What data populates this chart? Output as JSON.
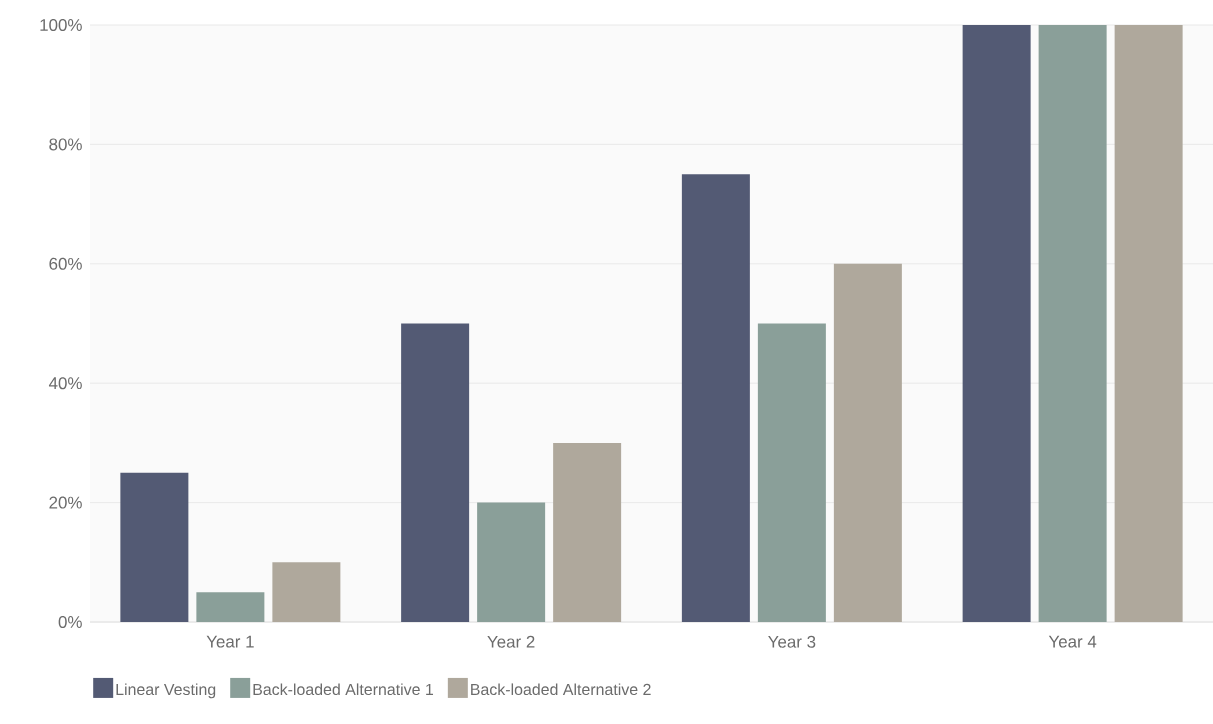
{
  "chart_data": {
    "type": "bar",
    "categories": [
      "Year 1",
      "Year 2",
      "Year 3",
      "Year 4"
    ],
    "series": [
      {
        "name": "Linear Vesting",
        "color": "#535a74",
        "values": [
          25,
          50,
          75,
          100
        ]
      },
      {
        "name": "Back-loaded Alternative 1",
        "color": "#8a9f99",
        "values": [
          5,
          20,
          50,
          100
        ]
      },
      {
        "name": "Back-loaded Alternative 2",
        "color": "#afa89c",
        "values": [
          10,
          30,
          60,
          100
        ]
      }
    ],
    "ylim": [
      0,
      100
    ],
    "yticks": [
      {
        "value": 0,
        "label": "0%"
      },
      {
        "value": 20,
        "label": "20%"
      },
      {
        "value": 40,
        "label": "40%"
      },
      {
        "value": 60,
        "label": "60%"
      },
      {
        "value": 80,
        "label": "80%"
      },
      {
        "value": 100,
        "label": "100%"
      }
    ],
    "grid": "y",
    "legend": "bottom left"
  }
}
